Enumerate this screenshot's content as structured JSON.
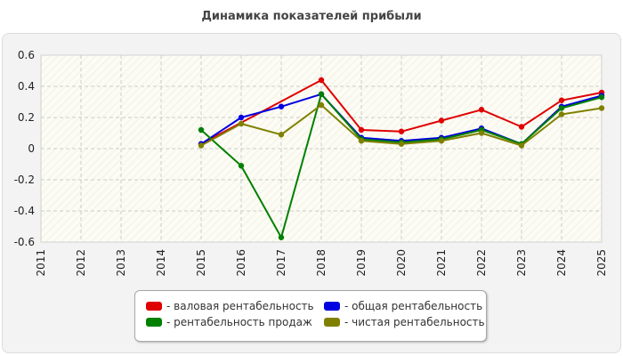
{
  "chart_data": {
    "type": "line",
    "title": "Динамика показателей прибыли",
    "xlabel": "",
    "ylabel": "",
    "categories": [
      "2011",
      "2012",
      "2013",
      "2014",
      "2015",
      "2016",
      "2017",
      "2018",
      "2019",
      "2020",
      "2021",
      "2022",
      "2023",
      "2024",
      "2025"
    ],
    "y_ticks": [
      "0.6",
      "0.4",
      "0.2",
      "0",
      "-0.2",
      "-0.4",
      "-0.6"
    ],
    "ylim": [
      -0.6,
      0.6
    ],
    "grid": true,
    "legend_position": "bottom",
    "series": [
      {
        "name": "- валовая рентабельность",
        "color": "#e00000",
        "values": [
          null,
          null,
          null,
          null,
          0.03,
          null,
          null,
          0.44,
          0.12,
          0.11,
          0.18,
          0.25,
          0.14,
          0.31,
          0.36
        ]
      },
      {
        "name": "- общая рентабельность",
        "color": "#0000e0",
        "values": [
          null,
          null,
          null,
          null,
          0.03,
          0.2,
          0.27,
          0.35,
          0.07,
          0.05,
          0.07,
          0.13,
          0.03,
          0.27,
          0.34
        ]
      },
      {
        "name": "- рентабельность продаж",
        "color": "#008000",
        "values": [
          null,
          null,
          null,
          null,
          0.12,
          -0.11,
          -0.57,
          0.35,
          0.06,
          0.04,
          0.06,
          0.12,
          0.03,
          0.26,
          0.33
        ]
      },
      {
        "name": "- чистая рентабельность",
        "color": "#808000",
        "values": [
          null,
          null,
          null,
          null,
          0.02,
          0.16,
          0.09,
          0.28,
          0.05,
          0.03,
          0.05,
          0.1,
          0.02,
          0.22,
          0.26
        ]
      }
    ]
  }
}
